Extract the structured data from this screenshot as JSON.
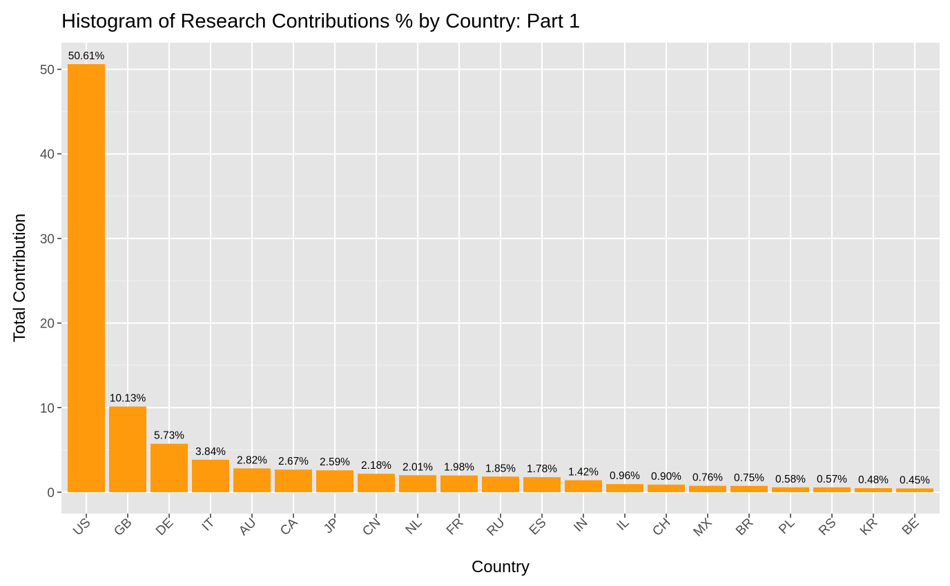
{
  "chart_data": {
    "type": "bar",
    "title": "Histogram of Research Contributions % by Country: Part 1",
    "xlabel": "Country",
    "ylabel": "Total Contribution",
    "ylim": [
      -2.53,
      53.14
    ],
    "yticks": [
      0,
      10,
      20,
      30,
      40,
      50
    ],
    "grid": true,
    "legend": "none",
    "bar_color": "#FF9A0D",
    "panel_color": "#E5E5E5",
    "categories": [
      "US",
      "GB",
      "DE",
      "IT",
      "AU",
      "CA",
      "JP",
      "CN",
      "NL",
      "FR",
      "RU",
      "ES",
      "IN",
      "IL",
      "CH",
      "MX",
      "BR",
      "PL",
      "RS",
      "KR",
      "BE"
    ],
    "values": [
      50.61,
      10.13,
      5.73,
      3.84,
      2.82,
      2.67,
      2.59,
      2.18,
      2.01,
      1.98,
      1.85,
      1.78,
      1.42,
      0.96,
      0.9,
      0.76,
      0.75,
      0.58,
      0.57,
      0.48,
      0.45
    ],
    "data_labels": [
      "50.61%",
      "10.13%",
      "5.73%",
      "3.84%",
      "2.82%",
      "2.67%",
      "2.59%",
      "2.18%",
      "2.01%",
      "1.98%",
      "1.85%",
      "1.78%",
      "1.42%",
      "0.96%",
      "0.90%",
      "0.76%",
      "0.75%",
      "0.58%",
      "0.57%",
      "0.48%",
      "0.45%"
    ]
  }
}
